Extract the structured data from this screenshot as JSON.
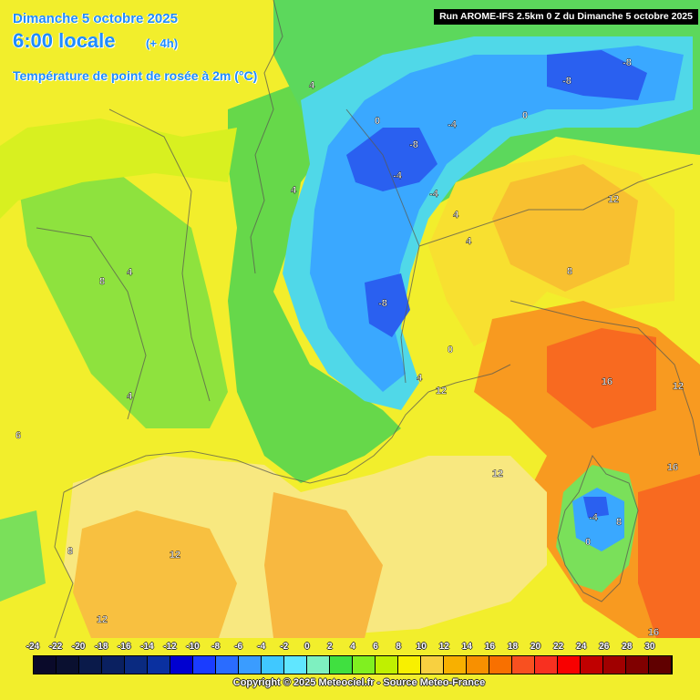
{
  "header": {
    "date_line": "Dimanche 5 octobre 2025",
    "time_line": "6:00 locale",
    "lead_time": "(+ 4h)",
    "parameter": "Température de point de rosée à 2m (°C)",
    "run_banner": "Run AROME-IFS 2.5km 0 Z du Dimanche 5 octobre 2025"
  },
  "colorbar": {
    "ticks": [
      "-24",
      "-22",
      "-20",
      "-18",
      "-16",
      "-14",
      "-12",
      "-10",
      "-8",
      "-6",
      "-4",
      "-2",
      "0",
      "2",
      "4",
      "6",
      "8",
      "10",
      "12",
      "14",
      "16",
      "18",
      "20",
      "22",
      "24",
      "26",
      "28",
      "30"
    ],
    "colors": [
      "#0a0a2a",
      "#0a1030",
      "#0a1a4a",
      "#0a2060",
      "#0a2a80",
      "#0a30a0",
      "#0000d0",
      "#1a3cff",
      "#2a6cff",
      "#3a9cff",
      "#40c8ff",
      "#60e6ff",
      "#7ef0c0",
      "#40e040",
      "#80f020",
      "#c0f000",
      "#f8f000",
      "#f8d040",
      "#f8b000",
      "#f89000",
      "#f87000",
      "#f85020",
      "#f83020",
      "#f80000",
      "#c00000",
      "#a00000",
      "#800000",
      "#600000"
    ]
  },
  "footer": {
    "copyright": "Copyright © 2025 Meteociel.fr - Source Meteo-France"
  },
  "map": {
    "contour_labels": [
      {
        "text": "4"
      },
      {
        "text": "-8"
      },
      {
        "text": "-8"
      },
      {
        "text": "0"
      },
      {
        "text": "-4"
      },
      {
        "text": "0"
      },
      {
        "text": "-8"
      },
      {
        "text": "-4"
      },
      {
        "text": "4"
      },
      {
        "text": "-4"
      },
      {
        "text": "12"
      },
      {
        "text": "4"
      },
      {
        "text": "4"
      },
      {
        "text": "-8"
      },
      {
        "text": "8"
      },
      {
        "text": "4"
      },
      {
        "text": "0"
      },
      {
        "text": "8"
      },
      {
        "text": "12"
      },
      {
        "text": "16"
      },
      {
        "text": "12"
      },
      {
        "text": "4"
      },
      {
        "text": "6"
      },
      {
        "text": "12"
      },
      {
        "text": "16"
      },
      {
        "text": "-4"
      },
      {
        "text": "8"
      },
      {
        "text": "0"
      },
      {
        "text": "12"
      },
      {
        "text": "8"
      },
      {
        "text": "12"
      },
      {
        "text": "16"
      },
      {
        "text": "4"
      }
    ]
  }
}
